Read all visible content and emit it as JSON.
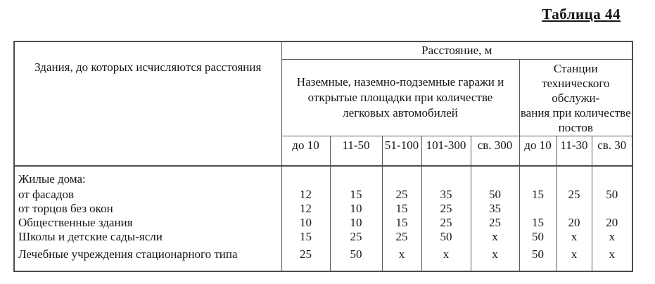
{
  "page": {
    "title": "Таблица 44"
  },
  "table": {
    "row_header": "Здания, до которых исчисляются расстояния",
    "distance_header": "Расстояние, м",
    "garages_header": "Наземные, наземно-подземные гаражи и\nоткрытые площадки при количестве\nлегковых автомобилей",
    "stations_header": "Станции\nтехнического\nобслужи-\nвания при количестве\nпостов",
    "subheaders": [
      "до 10",
      "11-50",
      "51-100",
      "101-300",
      "св. 300",
      "до 10",
      "11-30",
      "св. 30"
    ],
    "rows": [
      {
        "label": "Жилые дома:",
        "values": [
          "",
          "",
          "",
          "",
          "",
          "",
          "",
          ""
        ]
      },
      {
        "label": "от фасадов",
        "values": [
          "12",
          "15",
          "25",
          "35",
          "50",
          "15",
          "25",
          "50"
        ]
      },
      {
        "label": "от торцов без окон",
        "values": [
          "12",
          "10",
          "15",
          "25",
          "35",
          "",
          "",
          ""
        ]
      },
      {
        "label": "Общественные здания",
        "values": [
          "10",
          "10",
          "15",
          "25",
          "25",
          "15",
          "20",
          "20"
        ]
      },
      {
        "label": "Школы и детские сады-ясли",
        "values": [
          "15",
          "25",
          "25",
          "50",
          "х",
          "50",
          "х",
          "х"
        ]
      },
      {
        "label": "Лечебные учреждения стационарного типа",
        "values": [
          "25",
          "50",
          "х",
          "х",
          "х",
          "50",
          "х",
          "х"
        ]
      }
    ]
  }
}
